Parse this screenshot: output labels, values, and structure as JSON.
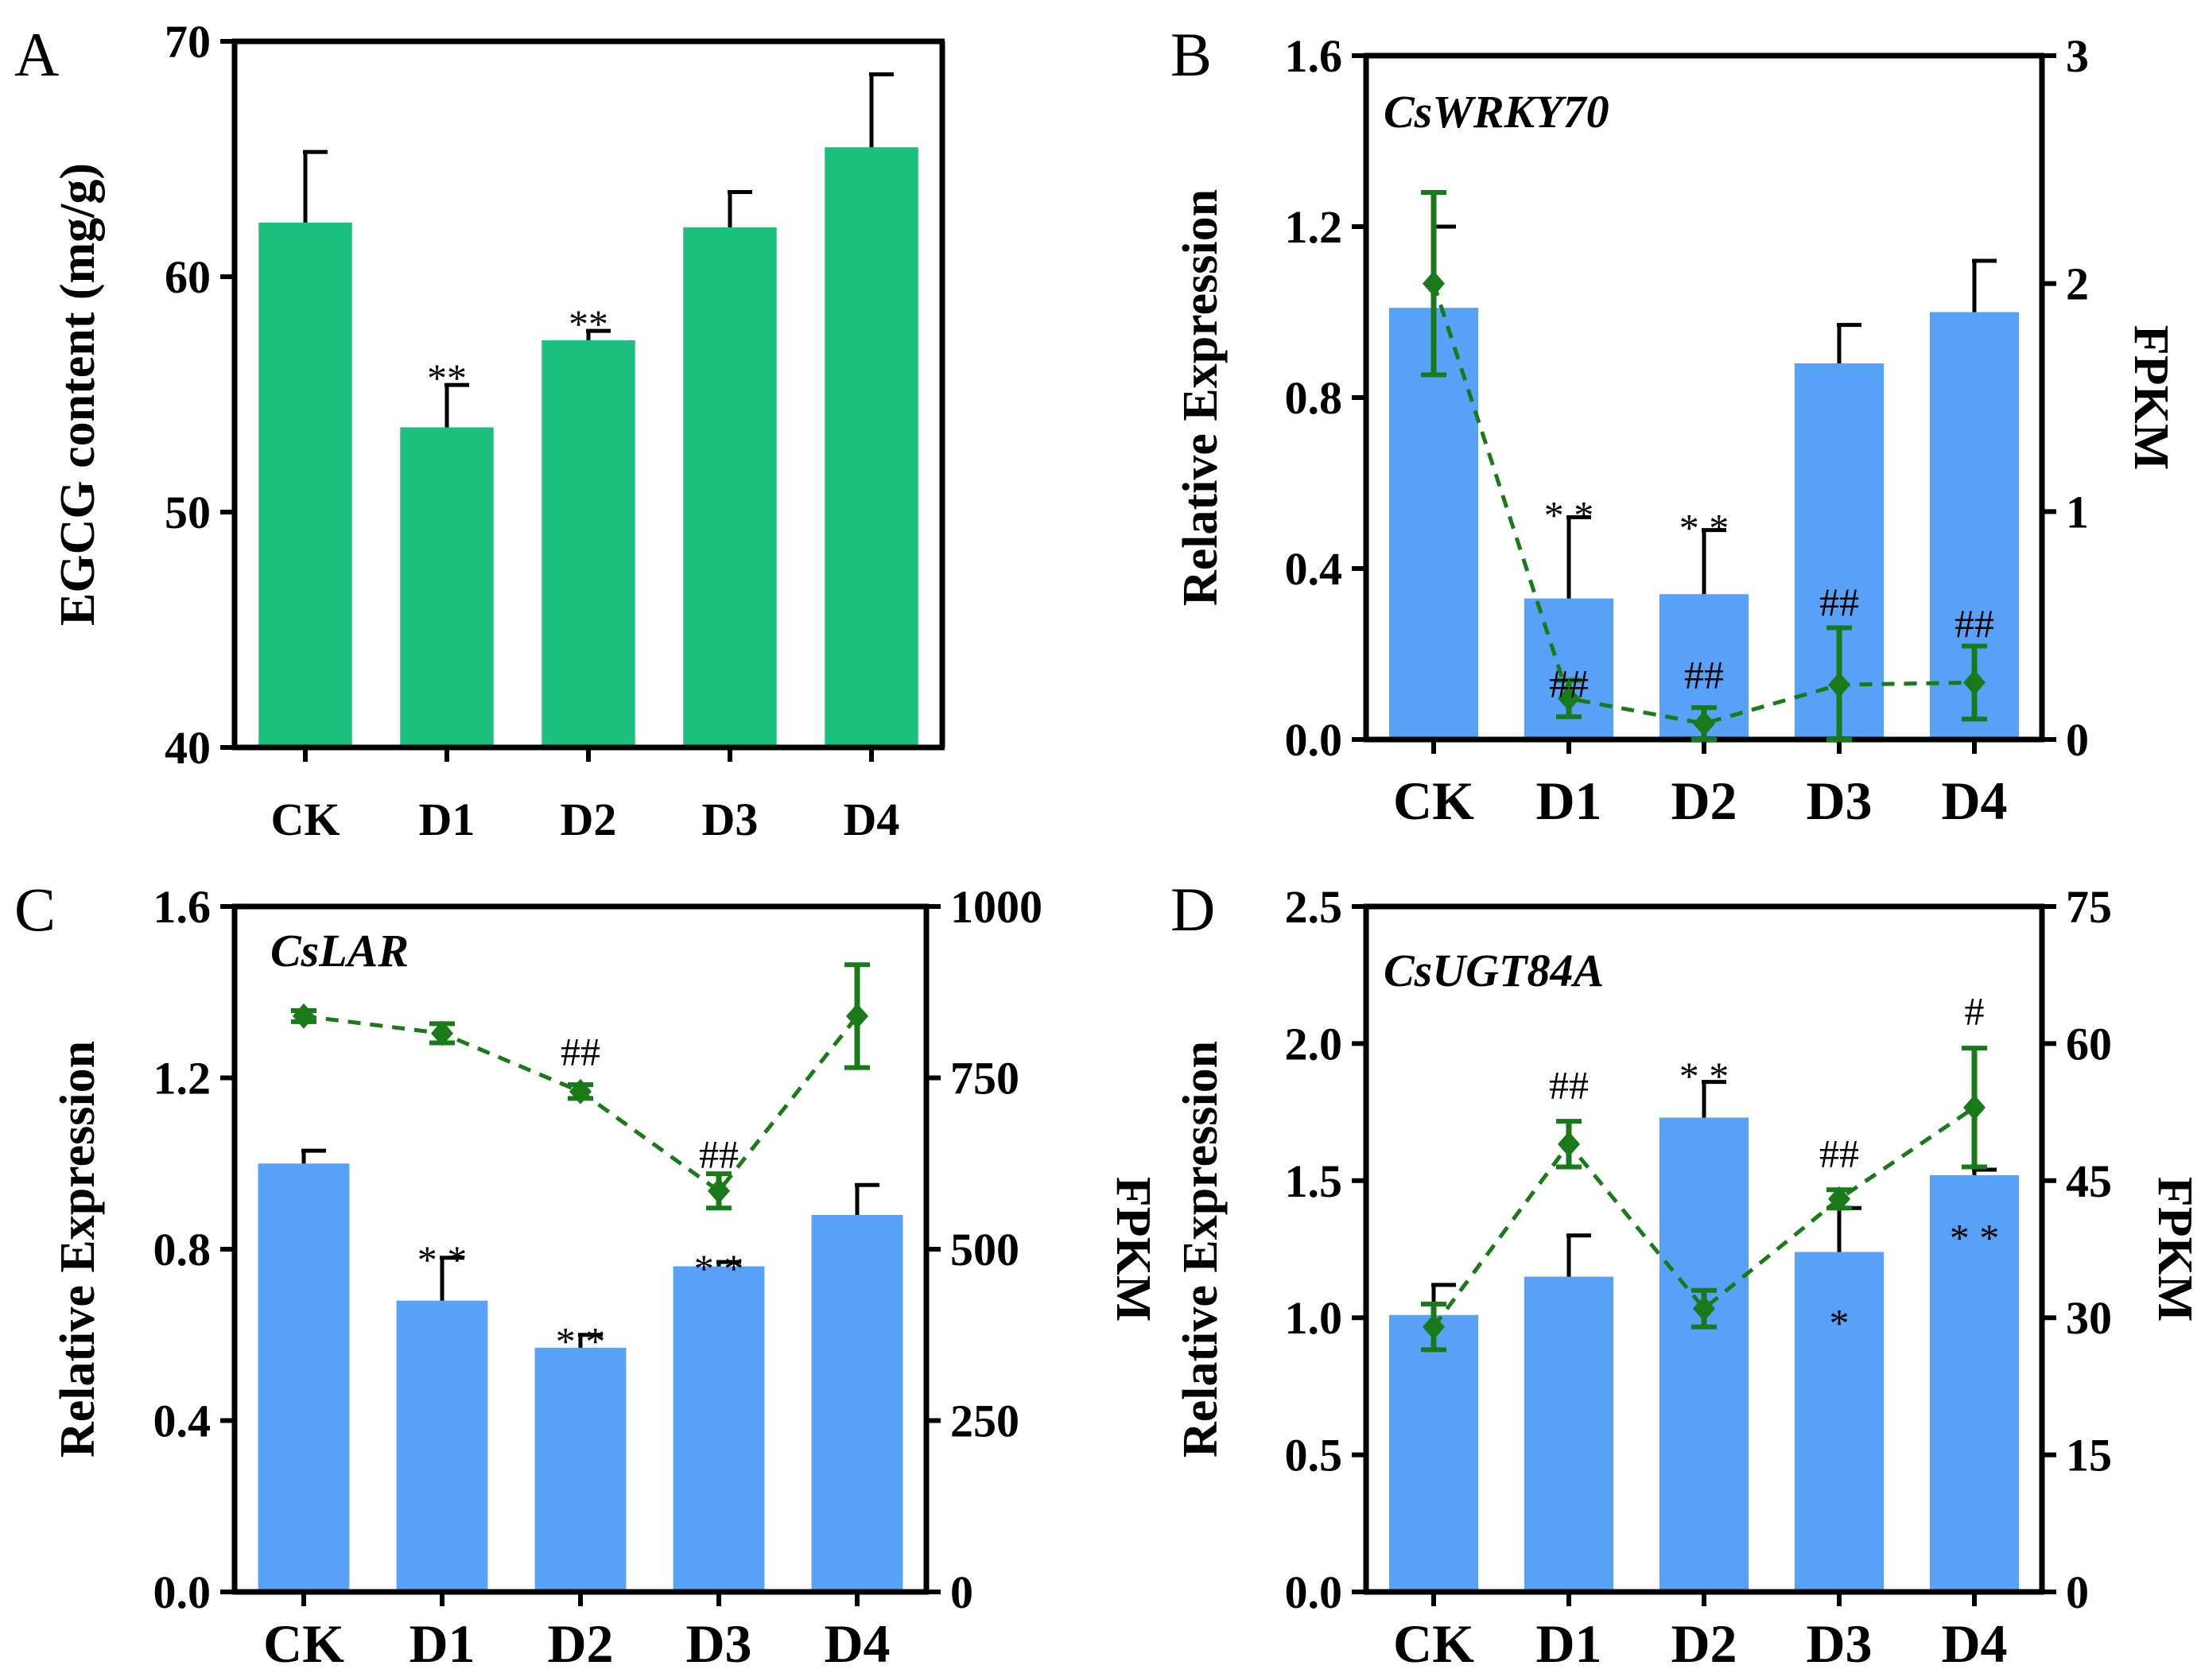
{
  "figure": {
    "panels": [
      "A",
      "B",
      "C",
      "D"
    ]
  },
  "colors": {
    "green_bar": "#1dbf7e",
    "blue_bar": "#58a1f8",
    "fpkm_line": "#1a7a1a",
    "axis": "#000000"
  },
  "chart_data": [
    {
      "panel": "A",
      "type": "bar",
      "title": "",
      "categories": [
        "CK",
        "D1",
        "D2",
        "D3",
        "D4"
      ],
      "ylabel": "EGCG content (mg/g)",
      "ylim": [
        40,
        70
      ],
      "yticks": [
        "40",
        "50",
        "60",
        "70"
      ],
      "series": [
        {
          "name": "EGCG content",
          "values": [
            62.3,
            53.6,
            57.3,
            62.1,
            65.5
          ],
          "errors": [
            3.0,
            1.8,
            0.4,
            1.5,
            3.1
          ]
        }
      ],
      "annotations": [
        {
          "category": "D1",
          "text": "**"
        },
        {
          "category": "D2",
          "text": "**"
        }
      ]
    },
    {
      "panel": "B",
      "type": "bar",
      "title": "CsWRKY70",
      "categories": [
        "CK",
        "D1",
        "D2",
        "D3",
        "D4"
      ],
      "ylabel": "Relative Expression",
      "ylim": [
        0,
        1.6
      ],
      "yticks": [
        "0.0",
        "0.4",
        "0.8",
        "1.2",
        "1.6"
      ],
      "y2label": "FPKM",
      "y2lim": [
        0,
        3
      ],
      "y2ticks": [
        "0",
        "1",
        "2",
        "3"
      ],
      "series": [
        {
          "name": "Relative Expression",
          "axis": "left",
          "values": [
            1.01,
            0.33,
            0.34,
            0.88,
            1.0
          ],
          "errors": [
            0.19,
            0.19,
            0.15,
            0.09,
            0.12
          ]
        },
        {
          "name": "FPKM",
          "axis": "right",
          "style": "dashed-line",
          "values": [
            2.0,
            0.18,
            0.07,
            0.24,
            0.25
          ],
          "errors": [
            0.4,
            0.08,
            0.07,
            0.25,
            0.16
          ]
        }
      ],
      "annotations": [
        {
          "category": "D1",
          "text": "* *",
          "axis": "left",
          "at": 0.55
        },
        {
          "category": "D2",
          "text": "* *",
          "axis": "left",
          "at": 0.52
        },
        {
          "category": "D1",
          "text": "##",
          "axis": "left",
          "at": 0.1
        },
        {
          "category": "D2",
          "text": "##",
          "axis": "left",
          "at": 0.12
        },
        {
          "category": "D3",
          "text": "##",
          "axis": "left",
          "at": 0.29
        },
        {
          "category": "D4",
          "text": "##",
          "axis": "left",
          "at": 0.24
        }
      ]
    },
    {
      "panel": "C",
      "type": "bar",
      "title": "CsLAR",
      "categories": [
        "CK",
        "D1",
        "D2",
        "D3",
        "D4"
      ],
      "ylabel": "Relative Expression",
      "ylim": [
        0,
        1.6
      ],
      "yticks": [
        "0.0",
        "0.4",
        "0.8",
        "1.2",
        "1.6"
      ],
      "y2label": "FPKM",
      "y2lim": [
        0,
        1000
      ],
      "y2ticks": [
        "0",
        "250",
        "500",
        "750",
        "1000"
      ],
      "series": [
        {
          "name": "Relative Expression",
          "axis": "left",
          "values": [
            1.0,
            0.68,
            0.57,
            0.76,
            0.88
          ],
          "errors": [
            0.03,
            0.1,
            0.03,
            0.01,
            0.07
          ]
        },
        {
          "name": "FPKM",
          "axis": "right",
          "style": "dashed-line",
          "values": [
            840,
            815,
            730,
            585,
            840
          ],
          "errors": [
            8,
            14,
            10,
            25,
            75
          ]
        }
      ],
      "annotations": [
        {
          "category": "D1",
          "text": "* *",
          "axis": "left",
          "at": 0.8
        },
        {
          "category": "D2",
          "text": "* *",
          "axis": "left",
          "at": 0.61
        },
        {
          "category": "D3",
          "text": "* *",
          "axis": "left",
          "at": 0.78
        },
        {
          "category": "D2",
          "text": "##",
          "axis": "left",
          "at": 1.23
        },
        {
          "category": "D3",
          "text": "##",
          "axis": "left",
          "at": 0.99
        }
      ]
    },
    {
      "panel": "D",
      "type": "bar",
      "title": "CsUGT84A",
      "categories": [
        "CK",
        "D1",
        "D2",
        "D3",
        "D4"
      ],
      "ylabel": "Relative Expression",
      "ylim": [
        0,
        2.5
      ],
      "yticks": [
        "0.0",
        "0.5",
        "1.0",
        "1.5",
        "2.0",
        "2.5"
      ],
      "y2label": "FPKM",
      "y2lim": [
        0,
        75
      ],
      "y2ticks": [
        "0",
        "15",
        "30",
        "45",
        "60",
        "75"
      ],
      "series": [
        {
          "name": "Relative Expression",
          "axis": "left",
          "values": [
            1.01,
            1.15,
            1.73,
            1.24,
            1.52
          ],
          "errors": [
            0.11,
            0.15,
            0.13,
            0.16,
            0.02
          ]
        },
        {
          "name": "FPKM",
          "axis": "right",
          "style": "dashed-line",
          "values": [
            29,
            49,
            31,
            43,
            53
          ],
          "errors": [
            2.5,
            2.5,
            2.0,
            1.0,
            6.5
          ]
        }
      ],
      "annotations": [
        {
          "category": "D1",
          "text": "##",
          "axis": "left",
          "at": 1.8
        },
        {
          "category": "D2",
          "text": "* *",
          "axis": "left",
          "at": 1.92
        },
        {
          "category": "D3",
          "text": "##",
          "axis": "left",
          "at": 1.55
        },
        {
          "category": "D3",
          "text": "*",
          "axis": "left",
          "at": 1.02
        },
        {
          "category": "D4",
          "text": "#",
          "axis": "left",
          "at": 2.07
        },
        {
          "category": "D4",
          "text": "* *",
          "axis": "left",
          "at": 1.33
        }
      ]
    }
  ]
}
